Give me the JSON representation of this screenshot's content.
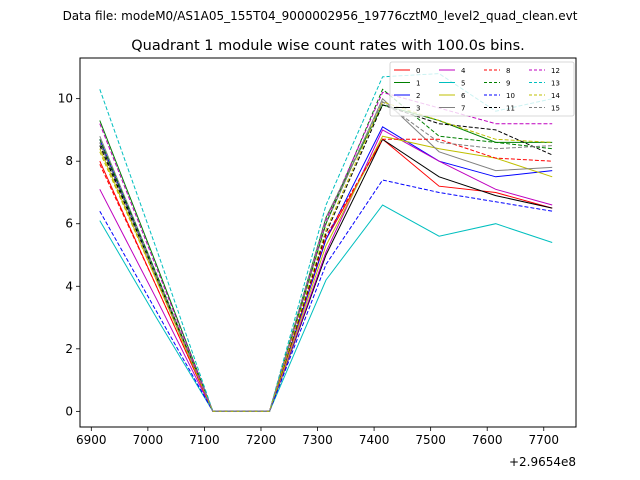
{
  "chart_data": {
    "type": "line",
    "suptitle": "Data file: modeM0/AS1A05_155T04_9000002956_19776cztM0_level2_quad_clean.evt",
    "title": "Quadrant 1 module wise count rates with 100.0s bins.",
    "xlabel": "",
    "ylabel": "",
    "x_offset_label": "+2.9654e8",
    "xlim": [
      6880,
      7757
    ],
    "ylim": [
      -0.5,
      11.3
    ],
    "x_ticks": [
      6900,
      7000,
      7100,
      7200,
      7300,
      7400,
      7500,
      7600,
      7700
    ],
    "y_ticks": [
      0,
      2,
      4,
      6,
      8,
      10
    ],
    "x": [
      6915,
      7015,
      7115,
      7215,
      7315,
      7415,
      7515,
      7615,
      7715
    ],
    "legend_position": "top-right",
    "series": [
      {
        "name": "0",
        "color": "#ff0000",
        "dash": "solid",
        "values": [
          8.0,
          4.0,
          0,
          0,
          5.5,
          8.7,
          7.2,
          7.0,
          6.5
        ]
      },
      {
        "name": "1",
        "color": "#008000",
        "dash": "solid",
        "values": [
          9.3,
          4.7,
          0,
          0,
          6.2,
          9.8,
          9.3,
          8.6,
          8.6
        ]
      },
      {
        "name": "2",
        "color": "#0000ff",
        "dash": "solid",
        "values": [
          8.7,
          4.3,
          0,
          0,
          5.5,
          9.1,
          8.0,
          7.5,
          7.7
        ]
      },
      {
        "name": "3",
        "color": "#000000",
        "dash": "solid",
        "values": [
          8.6,
          4.3,
          0,
          0,
          5.0,
          8.7,
          7.5,
          6.9,
          6.5
        ]
      },
      {
        "name": "4",
        "color": "#bf00bf",
        "dash": "solid",
        "values": [
          7.1,
          3.6,
          0,
          0,
          5.1,
          9.0,
          8.0,
          7.1,
          6.6
        ]
      },
      {
        "name": "5",
        "color": "#00bfbf",
        "dash": "solid",
        "values": [
          6.1,
          3.0,
          0,
          0,
          4.2,
          6.6,
          5.6,
          6.0,
          5.4
        ]
      },
      {
        "name": "6",
        "color": "#bfbf00",
        "dash": "solid",
        "values": [
          8.4,
          4.2,
          0,
          0,
          5.3,
          8.8,
          8.4,
          8.1,
          7.5
        ]
      },
      {
        "name": "7",
        "color": "#808080",
        "dash": "solid",
        "values": [
          8.8,
          4.4,
          0,
          0,
          6.0,
          10.0,
          8.3,
          7.7,
          7.8
        ]
      },
      {
        "name": "8",
        "color": "#ff0000",
        "dash": "dashed",
        "values": [
          7.9,
          4.0,
          0,
          0,
          5.6,
          8.7,
          8.7,
          8.1,
          8.0
        ]
      },
      {
        "name": "9",
        "color": "#008000",
        "dash": "dashed",
        "values": [
          8.7,
          4.4,
          0,
          0,
          6.0,
          10.3,
          8.8,
          8.6,
          8.4
        ]
      },
      {
        "name": "10",
        "color": "#0000ff",
        "dash": "dashed",
        "values": [
          6.4,
          3.2,
          0,
          0,
          4.7,
          7.4,
          7.0,
          6.7,
          6.4
        ]
      },
      {
        "name": "11",
        "color": "#000000",
        "dash": "dashed",
        "values": [
          8.5,
          4.3,
          0,
          0,
          5.7,
          9.8,
          9.2,
          9.0,
          8.2
        ]
      },
      {
        "name": "12",
        "color": "#bf00bf",
        "dash": "dashed",
        "values": [
          9.2,
          4.6,
          0,
          0,
          6.1,
          10.2,
          9.7,
          9.2,
          9.2
        ]
      },
      {
        "name": "13",
        "color": "#00bfbf",
        "dash": "dashed",
        "values": [
          10.3,
          5.2,
          0,
          0,
          6.6,
          10.7,
          10.8,
          9.6,
          10.0
        ]
      },
      {
        "name": "14",
        "color": "#bfbf00",
        "dash": "dashed",
        "values": [
          8.3,
          4.2,
          0,
          0,
          5.8,
          9.9,
          9.3,
          8.7,
          8.6
        ]
      },
      {
        "name": "15",
        "color": "#808080",
        "dash": "dashed",
        "values": [
          8.6,
          4.3,
          0,
          0,
          6.2,
          9.9,
          8.6,
          8.4,
          8.5
        ]
      }
    ]
  }
}
